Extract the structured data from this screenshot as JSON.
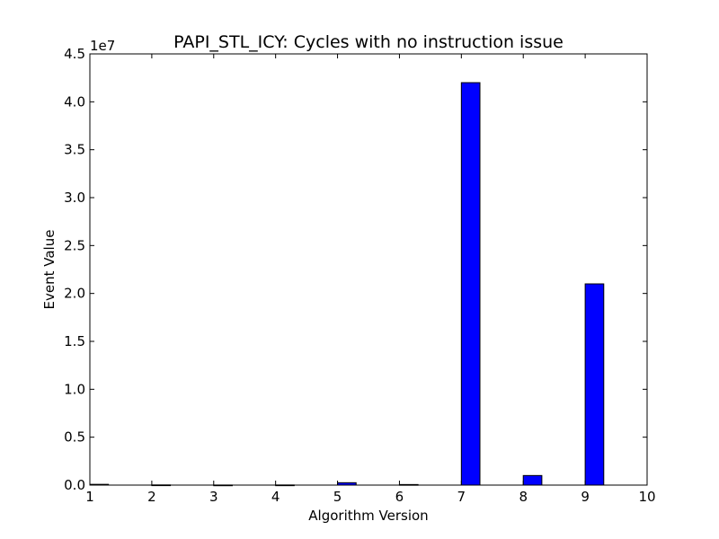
{
  "chart_data": {
    "type": "bar",
    "title": "PAPI_STL_ICY: Cycles with no instruction issue",
    "xlabel": "Algorithm Version",
    "ylabel": "Event Value",
    "y_offset_label": "1e7",
    "y_multiplier": 10000000,
    "x_ticks": [
      1,
      2,
      3,
      4,
      5,
      6,
      7,
      8,
      9,
      10
    ],
    "y_ticks": [
      0.0,
      0.5,
      1.0,
      1.5,
      2.0,
      2.5,
      3.0,
      3.5,
      4.0,
      4.5
    ],
    "y_tick_labels": [
      "0.0",
      "0.5",
      "1.0",
      "1.5",
      "2.0",
      "2.5",
      "3.0",
      "3.5",
      "4.0",
      "4.5"
    ],
    "xlim": [
      1,
      10
    ],
    "ylim": [
      0,
      45000000
    ],
    "bar_width": 0.3,
    "bar_color": "#0000ff",
    "categories": [
      1,
      2,
      3,
      4,
      5,
      6,
      7,
      8,
      9
    ],
    "values": [
      80000,
      20000,
      10000,
      15000,
      250000,
      60000,
      42000000,
      1000000,
      21000000
    ],
    "grid": false,
    "legend": "none"
  }
}
